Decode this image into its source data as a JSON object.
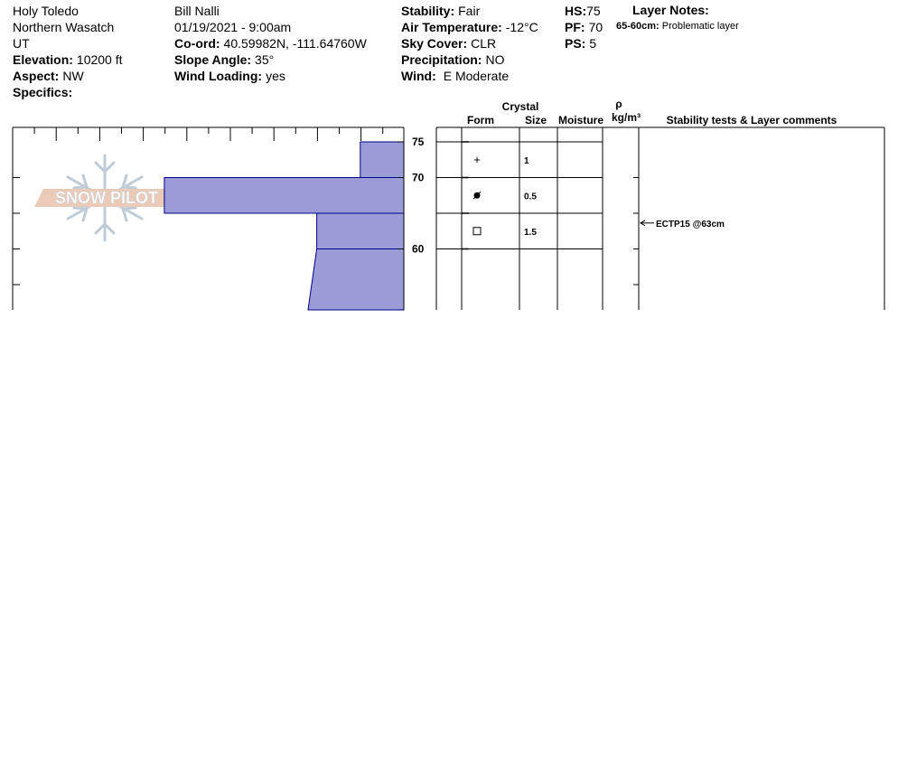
{
  "header": {
    "location": "Holy Toledo",
    "range": "Northern Wasatch",
    "state": "UT",
    "elevation_label": "Elevation:",
    "elevation": "10200 ft",
    "aspect_label": "Aspect:",
    "aspect": "NW",
    "specifics_label": "Specifics:",
    "observer": "Bill Nalli",
    "datetime": "01/19/2021 - 9:00am",
    "coord_label": "Co-ord:",
    "coord": "40.59982N, -111.64760W",
    "slope_label": "Slope Angle:",
    "slope": "35°",
    "windload_label": "Wind Loading:",
    "windload": "yes",
    "stability_label": "Stability:",
    "stability": "Fair",
    "airtemp_label": "Air Temperature:",
    "airtemp": "-12°C",
    "sky_label": "Sky Cover:",
    "sky": "CLR",
    "precip_label": "Precipitation:",
    "precip": "NO",
    "wind_label": "Wind:",
    "wind": "E Moderate",
    "hs_label": "HS:",
    "hs": "75",
    "pf_label": "PF:",
    "pf": "70",
    "ps_label": "PS:",
    "ps": "5"
  },
  "layer_notes": {
    "title": "Layer Notes:",
    "range": "65-60cm:",
    "text": "Problematic layer"
  },
  "logo_text": "SNOW PILOT",
  "chart_data": {
    "type": "bar",
    "title": "",
    "ylabel": "",
    "height_axis": {
      "unit": "cm",
      "min": 50,
      "max": 77,
      "ticks": [
        75,
        70,
        60
      ]
    },
    "hardness_profile": [
      {
        "top": 75,
        "bottom": 70,
        "hardness_from_right": 1.0
      },
      {
        "top": 70,
        "bottom": 65,
        "hardness_from_right": 5.5
      },
      {
        "top": 65,
        "bottom": 60,
        "hardness_from_right": 2.0
      },
      {
        "top": 60,
        "bottom": 51,
        "hardness_from_right": 2.0,
        "hardness_bottom_from_right": 2.2
      }
    ],
    "columns": {
      "crystal": "Crystal",
      "form": "Form",
      "size": "Size",
      "moisture": "Moisture",
      "rho": "ρ",
      "density_unit": "kg/m³",
      "comments": "Stability tests & Layer comments"
    },
    "layers": [
      {
        "top": 75,
        "bottom": 70,
        "form_symbol": "+",
        "size": "1"
      },
      {
        "top": 70,
        "bottom": 65,
        "form_symbol": "●",
        "size": "0.5"
      },
      {
        "top": 65,
        "bottom": 60,
        "form_symbol": "□",
        "size": "1.5"
      }
    ],
    "tests": [
      {
        "height": 63,
        "label": "ECTP15 @63cm"
      }
    ],
    "colors": {
      "fill": "#9b9bd7",
      "stroke": "#00008b"
    }
  }
}
